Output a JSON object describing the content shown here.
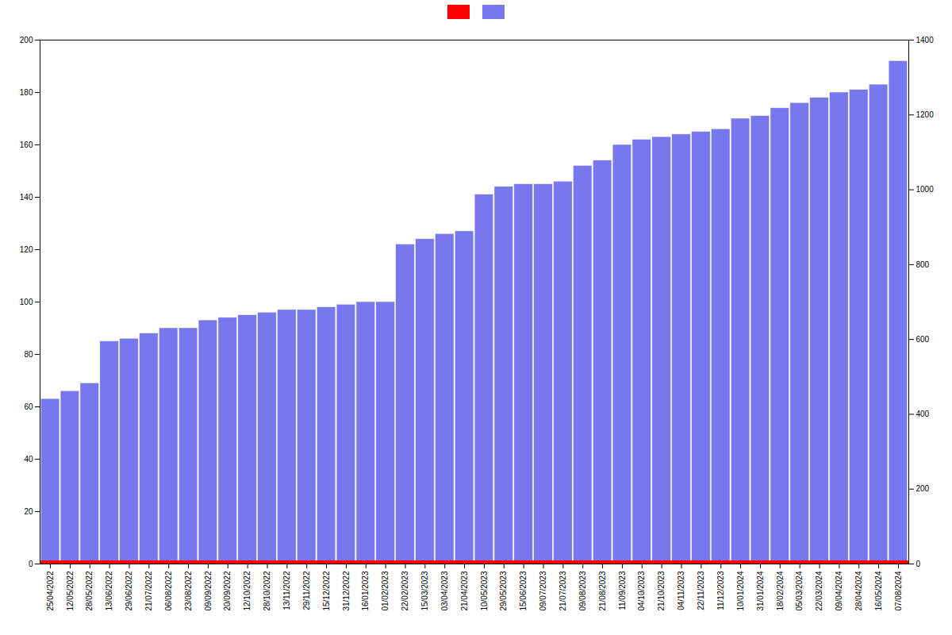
{
  "chart_data": {
    "type": "bar",
    "categories": [
      "25/04/2022",
      "12/05/2022",
      "28/05/2022",
      "13/06/2022",
      "29/06/2022",
      "21/07/2022",
      "06/08/2022",
      "23/08/2022",
      "09/09/2022",
      "20/09/2022",
      "12/10/2022",
      "28/10/2022",
      "13/11/2022",
      "29/11/2022",
      "15/12/2022",
      "31/12/2022",
      "16/01/2023",
      "01/02/2023",
      "22/02/2023",
      "15/03/2023",
      "03/04/2023",
      "21/04/2023",
      "10/05/2023",
      "29/05/2023",
      "15/06/2023",
      "09/07/2023",
      "21/07/2023",
      "09/08/2023",
      "21/08/2023",
      "11/09/2023",
      "04/10/2023",
      "21/10/2023",
      "04/11/2023",
      "22/11/2023",
      "11/12/2023",
      "10/01/2024",
      "31/01/2024",
      "18/02/2024",
      "05/03/2024",
      "22/03/2024",
      "09/04/2024",
      "28/04/2024",
      "16/05/2024",
      "07/08/2024"
    ],
    "values": [
      63,
      66,
      69,
      85,
      86,
      88,
      90,
      90,
      93,
      94,
      95,
      96,
      97,
      97,
      98,
      99,
      100,
      100,
      122,
      124,
      126,
      127,
      141,
      144,
      145,
      145,
      146,
      152,
      154,
      160,
      162,
      163,
      164,
      165,
      166,
      170,
      171,
      174,
      176,
      178,
      180,
      181,
      183,
      192
    ],
    "color": "#7777ee",
    "span": {
      "y": [
        0,
        1.2
      ],
      "color": "#ff0000"
    },
    "ylim": [
      0,
      200
    ],
    "yticks": [
      0,
      20,
      40,
      60,
      80,
      100,
      120,
      140,
      160,
      180,
      200
    ],
    "y2lim": [
      0,
      1400
    ],
    "y2ticks": [
      0,
      200,
      400,
      600,
      800,
      1000,
      1200,
      1400
    ],
    "grid": false,
    "legend": "top"
  }
}
